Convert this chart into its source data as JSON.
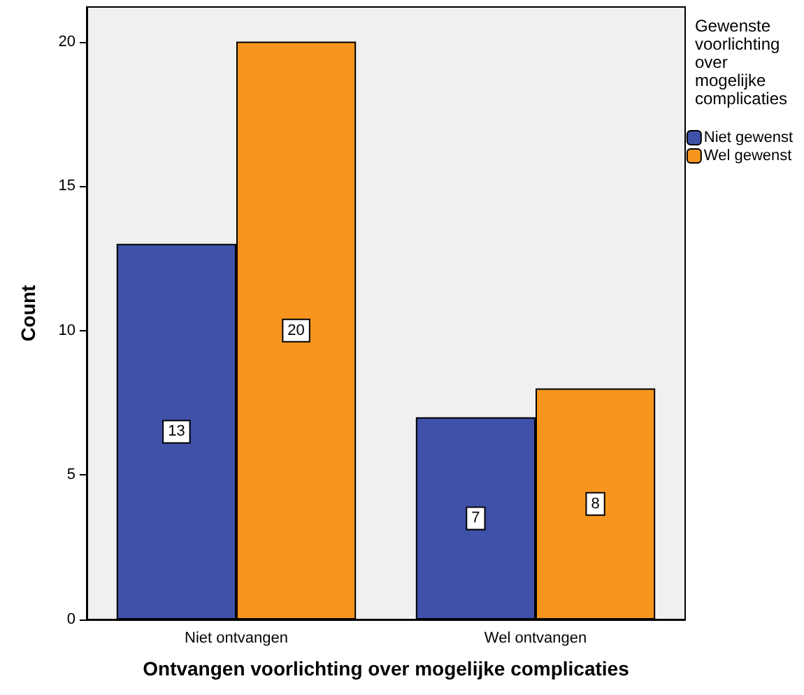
{
  "chart_data": {
    "type": "bar",
    "xlabel": "Ontvangen voorlichting over mogelijke complicaties",
    "ylabel": "Count",
    "legend_title": "Gewenste\nvoorlichting\nover\nmogelijke\ncomplicaties",
    "categories": [
      "Niet ontvangen",
      "Wel ontvangen"
    ],
    "series": [
      {
        "name": "Niet gewenst",
        "color": "#3f51a8",
        "values": [
          13,
          7
        ]
      },
      {
        "name": "Wel gewenst",
        "color": "#f7951e",
        "values": [
          20,
          8
        ]
      }
    ],
    "ylim": [
      0,
      21.2
    ],
    "yticks": [
      0,
      5,
      10,
      15,
      20
    ],
    "data_labels": true,
    "legend": "top right",
    "grid": false
  }
}
